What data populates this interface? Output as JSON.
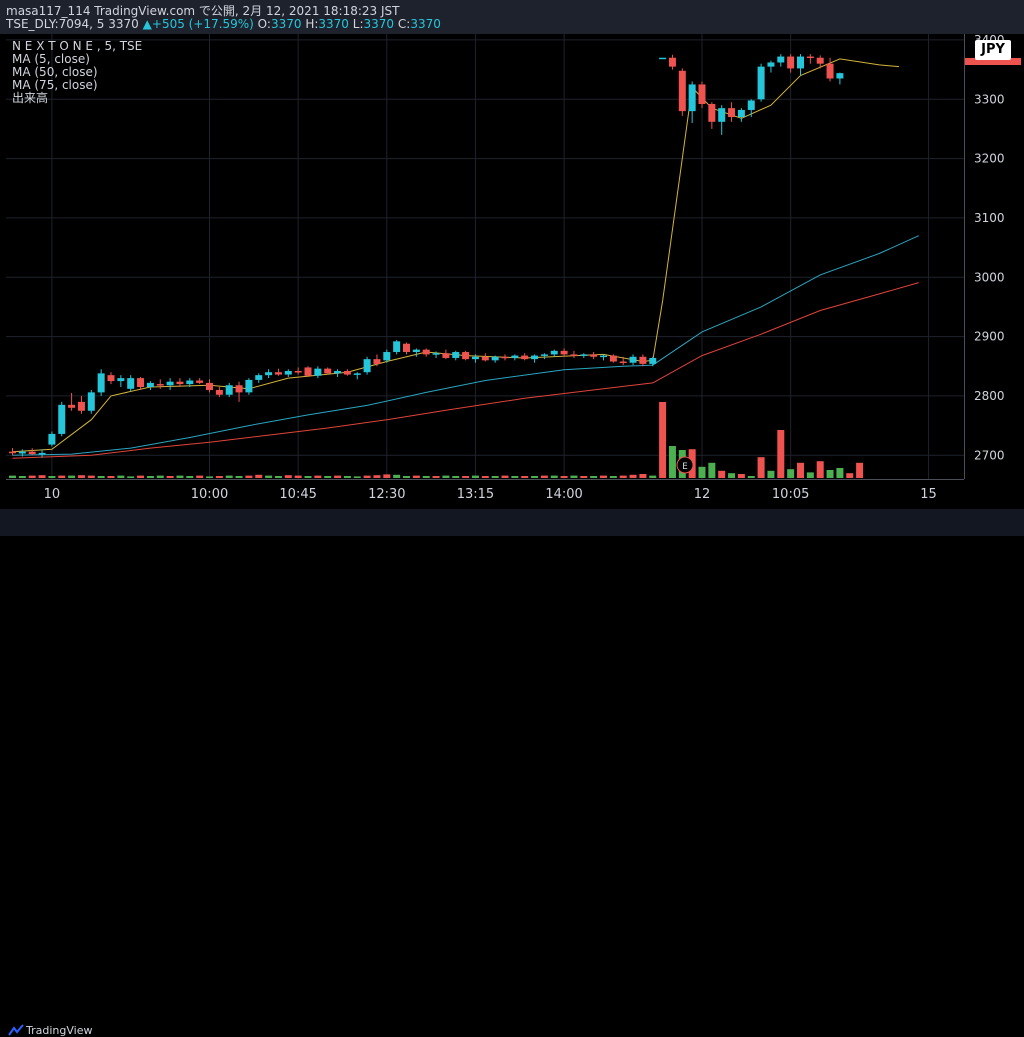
{
  "header": {
    "line1": "masa117_114 TradingView.com で公開, 2月 12, 2021 18:18:23 JST",
    "symbol": "TSE_DLY:7094, 5",
    "last": "3370",
    "arrow": "▲",
    "change": "+505 (+17.59%)",
    "o_label": "O:",
    "o": "3370",
    "h_label": "H:",
    "h": "3370",
    "l_label": "L:",
    "l": "3370",
    "c_label": "C:",
    "c": "3370"
  },
  "legend": {
    "title": "N E X T O N E , 5, TSE",
    "ma5": "MA (5, close)",
    "ma50": "MA (50, close)",
    "ma75": "MA (75, close)",
    "volume": "出来高"
  },
  "currency": "JPY",
  "earnings_marker": "E",
  "footer": {
    "brand": "TradingView"
  },
  "colors": {
    "up": "#26c6da",
    "down": "#ef5350",
    "ma5": "#d4b43a",
    "ma50": "#2aa6c2",
    "ma75": "#e0443a",
    "vol_up": "#4caf50",
    "vol_down": "#ef5350"
  },
  "chart_data": {
    "type": "candlestick",
    "y_ticks": [
      2700,
      2800,
      2900,
      3000,
      3100,
      3200,
      3300,
      3400
    ],
    "ylim": [
      2660,
      3410
    ],
    "x_ticks": [
      {
        "label": "10",
        "index": 4
      },
      {
        "label": "10:00",
        "index": 20
      },
      {
        "label": "10:45",
        "index": 29
      },
      {
        "label": "12:30",
        "index": 38
      },
      {
        "label": "13:15",
        "index": 47
      },
      {
        "label": "14:00",
        "index": 56
      },
      {
        "label": "12",
        "index": 70
      },
      {
        "label": "10:05",
        "index": 79
      },
      {
        "label": "15",
        "index": 93
      }
    ],
    "candles": [
      [
        2706,
        2712,
        2700,
        2704
      ],
      [
        2703,
        2710,
        2698,
        2706
      ],
      [
        2706,
        2712,
        2700,
        2702
      ],
      [
        2702,
        2710,
        2696,
        2704
      ],
      [
        2718,
        2740,
        2715,
        2736
      ],
      [
        2736,
        2790,
        2732,
        2785
      ],
      [
        2785,
        2805,
        2775,
        2780
      ],
      [
        2790,
        2800,
        2770,
        2775
      ],
      [
        2775,
        2810,
        2770,
        2806
      ],
      [
        2806,
        2845,
        2800,
        2838
      ],
      [
        2835,
        2840,
        2820,
        2825
      ],
      [
        2825,
        2835,
        2815,
        2830
      ],
      [
        2812,
        2835,
        2808,
        2830
      ],
      [
        2830,
        2832,
        2810,
        2815
      ],
      [
        2815,
        2825,
        2810,
        2822
      ],
      [
        2820,
        2828,
        2812,
        2818
      ],
      [
        2818,
        2830,
        2810,
        2824
      ],
      [
        2824,
        2830,
        2815,
        2820
      ],
      [
        2820,
        2830,
        2815,
        2826
      ],
      [
        2826,
        2830,
        2820,
        2822
      ],
      [
        2822,
        2828,
        2806,
        2810
      ],
      [
        2810,
        2815,
        2798,
        2802
      ],
      [
        2802,
        2822,
        2798,
        2818
      ],
      [
        2818,
        2824,
        2790,
        2806
      ],
      [
        2806,
        2830,
        2802,
        2827
      ],
      [
        2827,
        2838,
        2822,
        2835
      ],
      [
        2835,
        2845,
        2830,
        2840
      ],
      [
        2840,
        2846,
        2834,
        2836
      ],
      [
        2836,
        2845,
        2832,
        2842
      ],
      [
        2842,
        2848,
        2836,
        2840
      ],
      [
        2848,
        2850,
        2832,
        2834
      ],
      [
        2834,
        2850,
        2830,
        2846
      ],
      [
        2846,
        2848,
        2836,
        2838
      ],
      [
        2838,
        2845,
        2832,
        2842
      ],
      [
        2842,
        2845,
        2834,
        2836
      ],
      [
        2836,
        2840,
        2828,
        2838
      ],
      [
        2840,
        2866,
        2836,
        2862
      ],
      [
        2862,
        2870,
        2850,
        2854
      ],
      [
        2860,
        2878,
        2856,
        2874
      ],
      [
        2874,
        2894,
        2870,
        2892
      ],
      [
        2888,
        2890,
        2870,
        2874
      ],
      [
        2874,
        2880,
        2866,
        2878
      ],
      [
        2878,
        2880,
        2866,
        2870
      ],
      [
        2870,
        2875,
        2864,
        2872
      ],
      [
        2872,
        2878,
        2862,
        2864
      ],
      [
        2864,
        2876,
        2860,
        2874
      ],
      [
        2874,
        2876,
        2860,
        2862
      ],
      [
        2862,
        2870,
        2856,
        2866
      ],
      [
        2866,
        2872,
        2858,
        2860
      ],
      [
        2860,
        2868,
        2856,
        2866
      ],
      [
        2866,
        2870,
        2860,
        2864
      ],
      [
        2864,
        2870,
        2860,
        2868
      ],
      [
        2868,
        2872,
        2860,
        2862
      ],
      [
        2862,
        2870,
        2856,
        2868
      ],
      [
        2868,
        2872,
        2862,
        2870
      ],
      [
        2870,
        2878,
        2866,
        2876
      ],
      [
        2876,
        2880,
        2866,
        2870
      ],
      [
        2870,
        2876,
        2864,
        2868
      ],
      [
        2868,
        2872,
        2864,
        2870
      ],
      [
        2870,
        2874,
        2862,
        2866
      ],
      [
        2866,
        2870,
        2860,
        2868
      ],
      [
        2868,
        2870,
        2856,
        2858
      ],
      [
        2858,
        2866,
        2852,
        2856
      ],
      [
        2856,
        2870,
        2852,
        2866
      ],
      [
        2866,
        2870,
        2850,
        2854
      ],
      [
        2854,
        2866,
        2850,
        2864
      ],
      [
        3370,
        3370,
        3370,
        3370
      ],
      [
        3370,
        3375,
        3350,
        3355
      ],
      [
        3348,
        3352,
        3272,
        3280
      ],
      [
        3280,
        3330,
        3260,
        3325
      ],
      [
        3325,
        3330,
        3285,
        3292
      ],
      [
        3292,
        3295,
        3250,
        3262
      ],
      [
        3262,
        3290,
        3240,
        3285
      ],
      [
        3285,
        3295,
        3262,
        3270
      ],
      [
        3270,
        3285,
        3262,
        3282
      ],
      [
        3282,
        3300,
        3270,
        3298
      ],
      [
        3300,
        3360,
        3296,
        3355
      ],
      [
        3355,
        3365,
        3345,
        3362
      ],
      [
        3362,
        3376,
        3355,
        3372
      ],
      [
        3372,
        3376,
        3345,
        3352
      ],
      [
        3352,
        3376,
        3340,
        3372
      ],
      [
        3372,
        3376,
        3360,
        3370
      ],
      [
        3370,
        3374,
        3352,
        3360
      ],
      [
        3360,
        3370,
        3330,
        3335
      ],
      [
        3335,
        3345,
        3325,
        3344
      ]
    ],
    "volumes": [
      [
        6,
        1
      ],
      [
        5,
        1
      ],
      [
        6,
        0
      ],
      [
        7,
        0
      ],
      [
        5,
        1
      ],
      [
        6,
        0
      ],
      [
        6,
        1
      ],
      [
        7,
        0
      ],
      [
        6,
        0
      ],
      [
        5,
        1
      ],
      [
        5,
        0
      ],
      [
        6,
        1
      ],
      [
        4,
        1
      ],
      [
        6,
        0
      ],
      [
        5,
        1
      ],
      [
        6,
        1
      ],
      [
        5,
        0
      ],
      [
        6,
        1
      ],
      [
        5,
        1
      ],
      [
        6,
        0
      ],
      [
        4,
        1
      ],
      [
        5,
        0
      ],
      [
        6,
        1
      ],
      [
        5,
        1
      ],
      [
        6,
        0
      ],
      [
        8,
        0
      ],
      [
        6,
        1
      ],
      [
        5,
        1
      ],
      [
        7,
        0
      ],
      [
        6,
        0
      ],
      [
        5,
        1
      ],
      [
        6,
        0
      ],
      [
        5,
        1
      ],
      [
        6,
        0
      ],
      [
        5,
        1
      ],
      [
        4,
        1
      ],
      [
        6,
        0
      ],
      [
        7,
        0
      ],
      [
        9,
        0
      ],
      [
        8,
        1
      ],
      [
        5,
        1
      ],
      [
        6,
        0
      ],
      [
        5,
        1
      ],
      [
        5,
        0
      ],
      [
        6,
        1
      ],
      [
        5,
        1
      ],
      [
        5,
        0
      ],
      [
        6,
        1
      ],
      [
        5,
        0
      ],
      [
        5,
        1
      ],
      [
        6,
        0
      ],
      [
        5,
        1
      ],
      [
        5,
        0
      ],
      [
        5,
        1
      ],
      [
        6,
        0
      ],
      [
        6,
        1
      ],
      [
        5,
        0
      ],
      [
        6,
        1
      ],
      [
        5,
        0
      ],
      [
        5,
        1
      ],
      [
        6,
        0
      ],
      [
        5,
        1
      ],
      [
        6,
        0
      ],
      [
        8,
        0
      ],
      [
        10,
        0
      ],
      [
        6,
        1
      ],
      [
        190,
        0
      ],
      [
        80,
        1
      ],
      [
        70,
        1
      ],
      [
        72,
        0
      ],
      [
        28,
        1
      ],
      [
        38,
        1
      ],
      [
        18,
        0
      ],
      [
        12,
        1
      ],
      [
        10,
        0
      ],
      [
        5,
        1
      ],
      [
        52,
        0
      ],
      [
        18,
        1
      ],
      [
        120,
        0
      ],
      [
        22,
        1
      ],
      [
        38,
        0
      ],
      [
        14,
        1
      ],
      [
        42,
        0
      ],
      [
        20,
        1
      ],
      [
        25,
        1
      ],
      [
        12,
        0
      ],
      [
        38,
        0
      ]
    ],
    "ma5": [
      [
        0,
        2706
      ],
      [
        4,
        2710
      ],
      [
        8,
        2760
      ],
      [
        10,
        2800
      ],
      [
        14,
        2815
      ],
      [
        20,
        2818
      ],
      [
        24,
        2812
      ],
      [
        28,
        2830
      ],
      [
        34,
        2840
      ],
      [
        38,
        2858
      ],
      [
        42,
        2874
      ],
      [
        46,
        2868
      ],
      [
        52,
        2864
      ],
      [
        60,
        2870
      ],
      [
        64,
        2858
      ],
      [
        65,
        2860
      ],
      [
        66,
        2960
      ],
      [
        69,
        3320
      ],
      [
        71,
        3285
      ],
      [
        74,
        3268
      ],
      [
        77,
        3290
      ],
      [
        80,
        3340
      ],
      [
        84,
        3368
      ],
      [
        88,
        3358
      ],
      [
        90,
        3355
      ]
    ],
    "ma50": [
      [
        0,
        2700
      ],
      [
        6,
        2702
      ],
      [
        12,
        2712
      ],
      [
        18,
        2730
      ],
      [
        24,
        2750
      ],
      [
        30,
        2768
      ],
      [
        36,
        2784
      ],
      [
        42,
        2806
      ],
      [
        48,
        2826
      ],
      [
        56,
        2844
      ],
      [
        62,
        2850
      ],
      [
        65,
        2852
      ],
      [
        70,
        2908
      ],
      [
        76,
        2950
      ],
      [
        82,
        3004
      ],
      [
        88,
        3040
      ],
      [
        92,
        3070
      ]
    ],
    "ma75": [
      [
        0,
        2695
      ],
      [
        8,
        2700
      ],
      [
        14,
        2712
      ],
      [
        20,
        2722
      ],
      [
        26,
        2734
      ],
      [
        32,
        2746
      ],
      [
        38,
        2760
      ],
      [
        44,
        2776
      ],
      [
        52,
        2796
      ],
      [
        60,
        2812
      ],
      [
        65,
        2822
      ],
      [
        70,
        2868
      ],
      [
        76,
        2904
      ],
      [
        82,
        2944
      ],
      [
        88,
        2972
      ],
      [
        92,
        2991
      ]
    ]
  }
}
